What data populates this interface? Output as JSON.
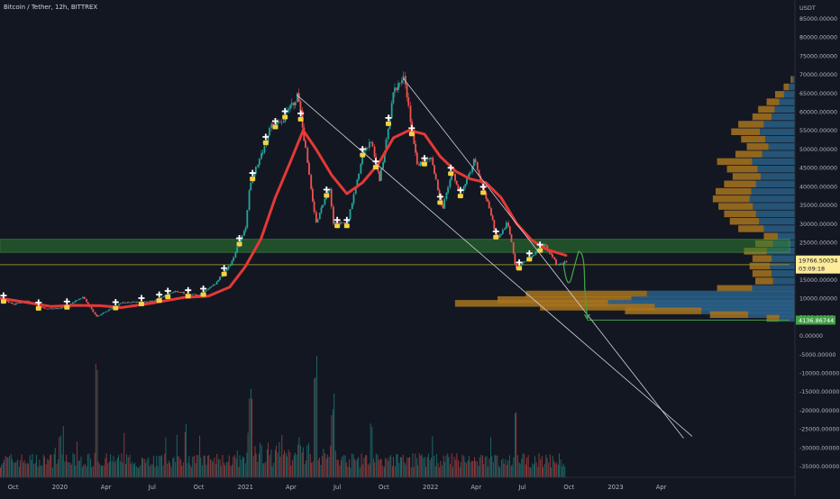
{
  "header": {
    "symbol_title": "Bitcoin / Tether, 12h, BITTREX"
  },
  "chart_data": {
    "type": "candlestick",
    "title": "Bitcoin / Tether, 12h, BITTREX",
    "price_axis_unit": "USDT",
    "y_tick_labels": [
      "85000.00000",
      "80000.00000",
      "75000.00000",
      "70000.00000",
      "65000.00000",
      "60000.00000",
      "55000.00000",
      "50000.00000",
      "45000.00000",
      "40000.00000",
      "35000.00000",
      "30000.00000",
      "25000.00000",
      "20000.00000",
      "15000.00000",
      "10000.00000",
      "5000.00000",
      "0.00000",
      "-5000.00000",
      "-10000.00000",
      "-15000.00000",
      "-20000.00000",
      "-25000.00000",
      "-30000.00000",
      "-35000.00000"
    ],
    "y_tick_values": [
      85000,
      80000,
      75000,
      70000,
      65000,
      60000,
      55000,
      50000,
      45000,
      40000,
      35000,
      30000,
      25000,
      20000,
      15000,
      10000,
      5000,
      0,
      -5000,
      -10000,
      -15000,
      -20000,
      -25000,
      -30000,
      -35000
    ],
    "ylim": [
      -38000,
      88000
    ],
    "x_tick_labels": [
      "Oct",
      "2020",
      "Apr",
      "Jul",
      "Oct",
      "2021",
      "Apr",
      "Jul",
      "Oct",
      "2022",
      "Apr",
      "Jul",
      "Oct",
      "2023",
      "Apr"
    ],
    "x_tick_dates": [
      "2019-10-01",
      "2020-01-01",
      "2020-04-01",
      "2020-07-01",
      "2020-10-01",
      "2021-01-01",
      "2021-04-01",
      "2021-07-01",
      "2021-10-01",
      "2022-01-01",
      "2022-04-01",
      "2022-07-01",
      "2022-10-01",
      "2023-01-01",
      "2023-04-01"
    ],
    "xlim": [
      "2019-09-05",
      "2023-12-10"
    ],
    "price_path": [
      [
        "2019-09-05",
        10300
      ],
      [
        "2019-10-01",
        8300
      ],
      [
        "2019-10-25",
        9300
      ],
      [
        "2019-12-01",
        7300
      ],
      [
        "2020-01-01",
        7200
      ],
      [
        "2020-02-15",
        10300
      ],
      [
        "2020-03-12",
        5000
      ],
      [
        "2020-04-01",
        6600
      ],
      [
        "2020-05-01",
        8800
      ],
      [
        "2020-07-01",
        9200
      ],
      [
        "2020-08-15",
        11800
      ],
      [
        "2020-10-01",
        10700
      ],
      [
        "2020-11-01",
        13800
      ],
      [
        "2020-12-01",
        19000
      ],
      [
        "2021-01-01",
        29000
      ],
      [
        "2021-01-08",
        40000
      ],
      [
        "2021-02-20",
        56000
      ],
      [
        "2021-03-10",
        57000
      ],
      [
        "2021-04-14",
        64500
      ],
      [
        "2021-05-19",
        30000
      ],
      [
        "2021-06-15",
        40000
      ],
      [
        "2021-06-22",
        30000
      ],
      [
        "2021-07-20",
        30000
      ],
      [
        "2021-08-20",
        49000
      ],
      [
        "2021-09-07",
        52000
      ],
      [
        "2021-09-21",
        41000
      ],
      [
        "2021-10-20",
        66000
      ],
      [
        "2021-11-10",
        69000
      ],
      [
        "2021-12-04",
        46000
      ],
      [
        "2022-01-01",
        47000
      ],
      [
        "2022-01-24",
        34000
      ],
      [
        "2022-02-10",
        44000
      ],
      [
        "2022-03-01",
        38000
      ],
      [
        "2022-03-28",
        47500
      ],
      [
        "2022-05-12",
        26000
      ],
      [
        "2022-06-01",
        30500
      ],
      [
        "2022-06-18",
        17600
      ],
      [
        "2022-07-01",
        19500
      ],
      [
        "2022-08-14",
        24400
      ],
      [
        "2022-09-06",
        19000
      ],
      [
        "2022-09-25",
        19766.50034
      ]
    ],
    "moving_average": [
      [
        "2019-09-05",
        10000
      ],
      [
        "2019-11-01",
        8800
      ],
      [
        "2019-12-15",
        7800
      ],
      [
        "2020-02-01",
        8100
      ],
      [
        "2020-03-20",
        8000
      ],
      [
        "2020-05-01",
        7500
      ],
      [
        "2020-07-01",
        8700
      ],
      [
        "2020-09-01",
        10200
      ],
      [
        "2020-10-20",
        10600
      ],
      [
        "2020-12-01",
        13000
      ],
      [
        "2021-01-01",
        18500
      ],
      [
        "2021-02-01",
        26000
      ],
      [
        "2021-03-01",
        37000
      ],
      [
        "2021-04-01",
        47000
      ],
      [
        "2021-04-25",
        55000
      ],
      [
        "2021-05-20",
        50000
      ],
      [
        "2021-06-20",
        43000
      ],
      [
        "2021-07-20",
        38000
      ],
      [
        "2021-08-20",
        41000
      ],
      [
        "2021-09-20",
        46000
      ],
      [
        "2021-10-20",
        53000
      ],
      [
        "2021-11-20",
        55000
      ],
      [
        "2021-12-20",
        54000
      ],
      [
        "2022-01-20",
        48000
      ],
      [
        "2022-02-20",
        44000
      ],
      [
        "2022-03-20",
        42000
      ],
      [
        "2022-04-20",
        41000
      ],
      [
        "2022-05-20",
        37000
      ],
      [
        "2022-06-20",
        30000
      ],
      [
        "2022-07-20",
        25500
      ],
      [
        "2022-08-20",
        23000
      ],
      [
        "2022-09-25",
        21500
      ]
    ],
    "buy_markers": [
      "2019-09-12",
      "2019-11-20",
      "2020-01-15",
      "2020-04-20",
      "2020-06-10",
      "2020-07-15",
      "2020-08-01",
      "2020-09-10",
      "2020-10-10",
      "2020-11-20",
      "2020-12-20",
      "2021-01-15",
      "2021-02-10",
      "2021-03-01",
      "2021-03-20",
      "2021-04-20",
      "2021-06-10",
      "2021-07-01",
      "2021-07-20",
      "2021-08-20",
      "2021-09-15",
      "2021-10-10",
      "2021-11-25",
      "2021-12-20",
      "2022-01-20",
      "2022-02-10",
      "2022-03-01",
      "2022-04-15",
      "2022-05-10",
      "2022-06-25",
      "2022-07-15",
      "2022-08-05"
    ],
    "horizontal_levels": [
      {
        "name": "resistance-zone",
        "from": 22300,
        "to": 25800,
        "color": "#2e7d32"
      },
      {
        "name": "support-line",
        "value": 19000,
        "color": "#8f8a2a"
      },
      {
        "name": "target-line",
        "value": 4136.86744,
        "color": "#43a047"
      }
    ],
    "trendlines": [
      {
        "from": [
          "2021-04-12",
          64500
        ],
        "to": [
          "2023-06-01",
          -27000
        ]
      },
      {
        "from": [
          "2021-11-08",
          69000
        ],
        "to": [
          "2023-05-15",
          -27500
        ]
      }
    ],
    "projection_arrow": [
      [
        "2022-09-20",
        19500
      ],
      [
        "2022-10-05",
        15000
      ],
      [
        "2022-10-20",
        22300
      ],
      [
        "2022-11-01",
        13000
      ],
      [
        "2022-11-06",
        4500
      ]
    ],
    "volume_profile": {
      "rows": [
        {
          "price": 69000,
          "value": 3
        },
        {
          "price": 67000,
          "value": 8
        },
        {
          "price": 65000,
          "value": 14
        },
        {
          "price": 63000,
          "value": 20
        },
        {
          "price": 61000,
          "value": 26
        },
        {
          "price": 59000,
          "value": 30
        },
        {
          "price": 57000,
          "value": 40
        },
        {
          "price": 55000,
          "value": 45
        },
        {
          "price": 53000,
          "value": 38
        },
        {
          "price": 51000,
          "value": 34
        },
        {
          "price": 49000,
          "value": 42
        },
        {
          "price": 47000,
          "value": 55
        },
        {
          "price": 45000,
          "value": 48
        },
        {
          "price": 43000,
          "value": 44
        },
        {
          "price": 41000,
          "value": 50
        },
        {
          "price": 39000,
          "value": 56
        },
        {
          "price": 37000,
          "value": 58
        },
        {
          "price": 35000,
          "value": 54
        },
        {
          "price": 33000,
          "value": 50
        },
        {
          "price": 31000,
          "value": 46
        },
        {
          "price": 29000,
          "value": 40
        },
        {
          "price": 27000,
          "value": 22
        },
        {
          "price": 25000,
          "value": 28
        },
        {
          "price": 23000,
          "value": 36
        },
        {
          "price": 21000,
          "value": 30
        },
        {
          "price": 19000,
          "value": 32
        },
        {
          "price": 17000,
          "value": 30
        },
        {
          "price": 15000,
          "value": 28
        },
        {
          "price": 13000,
          "value": 55
        },
        {
          "price": 11500,
          "value": 190
        },
        {
          "price": 10000,
          "value": 210
        },
        {
          "price": 9000,
          "value": 240
        },
        {
          "price": 8000,
          "value": 180
        },
        {
          "price": 7000,
          "value": 120
        },
        {
          "price": 6000,
          "value": 60
        },
        {
          "price": 5000,
          "value": 20
        }
      ]
    },
    "volume_window": [
      0,
      100
    ],
    "current_price_label": "19766.50034",
    "countdown_label": "03:09:18",
    "target_price_label": "4136.86744",
    "colors": {
      "background": "#131722",
      "up": "#26a69a",
      "down": "#ef5350",
      "ma": "#e53935",
      "marker_white": "#ffffff",
      "marker_yellow": "#f5d142",
      "trendline": "#d1d4dc",
      "profile_up": "#2a5f86",
      "profile_down": "#a8741e",
      "label_yellow_bg": "#ffeb99",
      "label_green_bg": "#43a047"
    }
  }
}
